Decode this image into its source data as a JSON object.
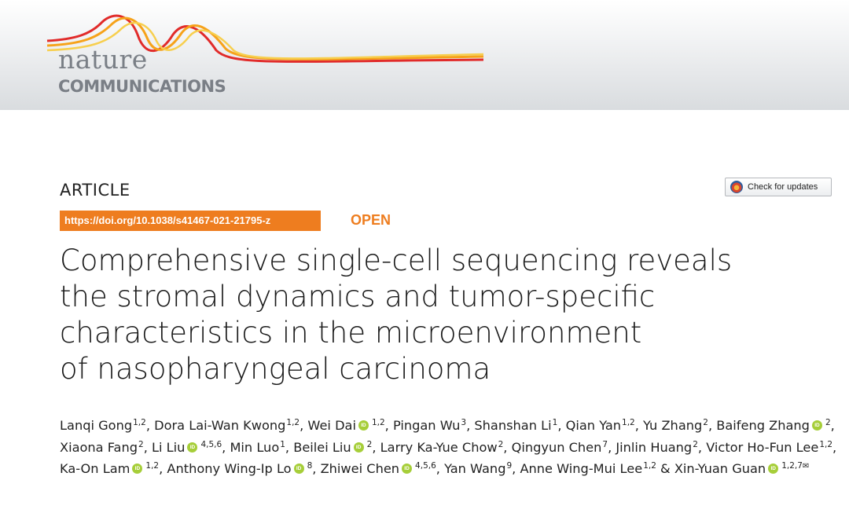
{
  "journal": {
    "logo_line1": "nature",
    "logo_line2": "COMMUNICATIONS",
    "wave_colors": [
      "#e12b2a",
      "#f6a21a",
      "#f7cf4e"
    ]
  },
  "article": {
    "type_label": "ARTICLE",
    "doi": "https://doi.org/10.1038/s41467-021-21795-z",
    "access": "OPEN",
    "check_updates": "Check for updates",
    "accent_color": "#ee7d1f",
    "title_lines": [
      "Comprehensive single-cell sequencing reveals",
      "the stromal dynamics and tumor-specific",
      "characteristics in the microenvironment",
      "of nasopharyngeal carcinoma"
    ]
  },
  "authors": [
    {
      "name": "Lanqi Gong",
      "aff": "1,2",
      "orcid": false
    },
    {
      "name": "Dora Lai-Wan Kwong",
      "aff": "1,2",
      "orcid": false
    },
    {
      "name": "Wei Dai",
      "aff": "1,2",
      "orcid": true
    },
    {
      "name": "Pingan Wu",
      "aff": "3",
      "orcid": false
    },
    {
      "name": "Shanshan Li",
      "aff": "1",
      "orcid": false
    },
    {
      "name": "Qian Yan",
      "aff": "1,2",
      "orcid": false
    },
    {
      "name": "Yu Zhang",
      "aff": "2",
      "orcid": false
    },
    {
      "name": "Baifeng Zhang",
      "aff": "2",
      "orcid": true
    },
    {
      "name": "Xiaona Fang",
      "aff": "2",
      "orcid": false
    },
    {
      "name": "Li Liu",
      "aff": "4,5,6",
      "orcid": true
    },
    {
      "name": "Min Luo",
      "aff": "1",
      "orcid": false
    },
    {
      "name": "Beilei Liu",
      "aff": "2",
      "orcid": true
    },
    {
      "name": "Larry Ka-Yue Chow",
      "aff": "2",
      "orcid": false
    },
    {
      "name": "Qingyun Chen",
      "aff": "7",
      "orcid": false
    },
    {
      "name": "Jinlin Huang",
      "aff": "2",
      "orcid": false
    },
    {
      "name": "Victor Ho-Fun Lee",
      "aff": "1,2",
      "orcid": false
    },
    {
      "name": "Ka-On Lam",
      "aff": "1,2",
      "orcid": true
    },
    {
      "name": "Anthony Wing-Ip Lo",
      "aff": "8",
      "orcid": true
    },
    {
      "name": "Zhiwei Chen",
      "aff": "4,5,6",
      "orcid": true
    },
    {
      "name": "Yan Wang",
      "aff": "9",
      "orcid": false
    },
    {
      "name": "Anne Wing-Mui Lee",
      "aff": "1,2",
      "orcid": false
    },
    {
      "name": "Xin-Yuan Guan",
      "aff": "1,2,7",
      "orcid": true,
      "corresponding": true
    }
  ],
  "corresponding_icon": "envelope-icon"
}
